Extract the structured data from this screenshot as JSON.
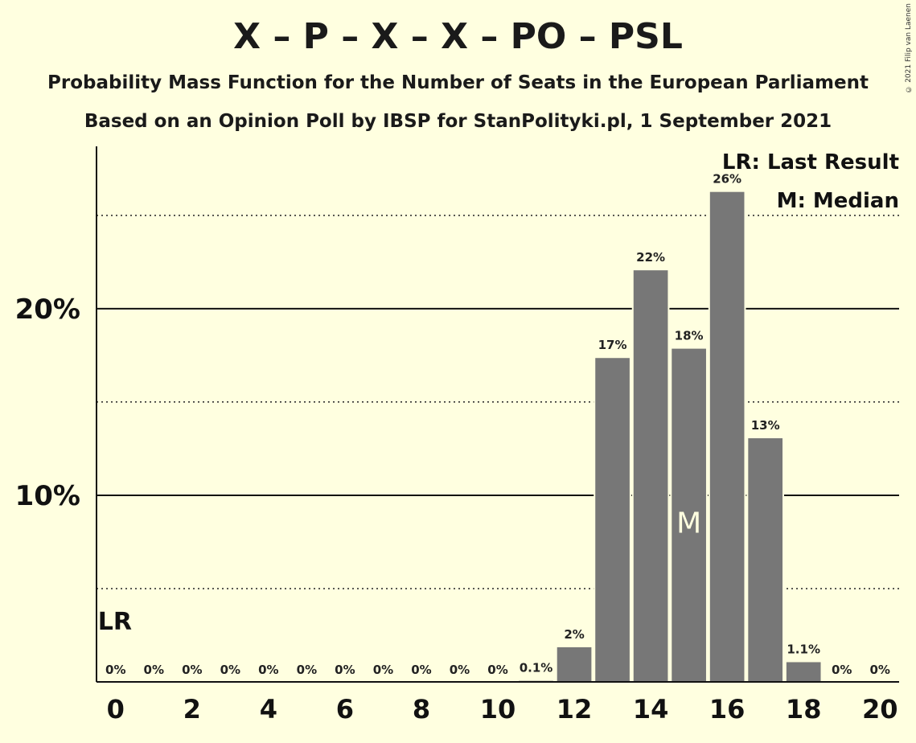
{
  "chart_data": {
    "type": "bar",
    "title": "X – P – X – X – PO – PSL",
    "subtitle": "Probability Mass Function for the Number of Seats in the European Parliament",
    "subtitle2": "Based on an Opinion Poll by IBSP for StanPolityki.pl, 1 September 2021",
    "copyright": "© 2021 Filip van Laenen",
    "x": [
      0,
      1,
      2,
      3,
      4,
      5,
      6,
      7,
      8,
      9,
      10,
      11,
      12,
      13,
      14,
      15,
      16,
      17,
      18,
      19,
      20
    ],
    "values": [
      0,
      0,
      0,
      0,
      0,
      0,
      0,
      0,
      0,
      0,
      0,
      0.1,
      1.9,
      17.4,
      22.1,
      17.9,
      26.3,
      13.1,
      1.1,
      0,
      0
    ],
    "data_labels": [
      "0%",
      "0%",
      "0%",
      "0%",
      "0%",
      "0%",
      "0%",
      "0%",
      "0%",
      "0%",
      "0%",
      "0.1%",
      "2%",
      "17%",
      "22%",
      "18%",
      "26%",
      "13%",
      "1.1%",
      "0%",
      "0%"
    ],
    "x_ticks": [
      "0",
      "2",
      "4",
      "6",
      "8",
      "10",
      "12",
      "14",
      "16",
      "18",
      "20"
    ],
    "y_ticks": [
      "10%",
      "20%"
    ],
    "ylim": [
      0,
      28.7
    ],
    "grid_solid": [
      10,
      20
    ],
    "grid_dotted": [
      5,
      15,
      25
    ],
    "bar_color": "#777777",
    "background": "#ffffe0",
    "last_result": {
      "seats": 0,
      "label": "LR"
    },
    "median": {
      "seats": 15,
      "label": "M"
    },
    "legend": [
      "LR: Last Result",
      "M: Median"
    ],
    "legend_position": "top-right"
  }
}
